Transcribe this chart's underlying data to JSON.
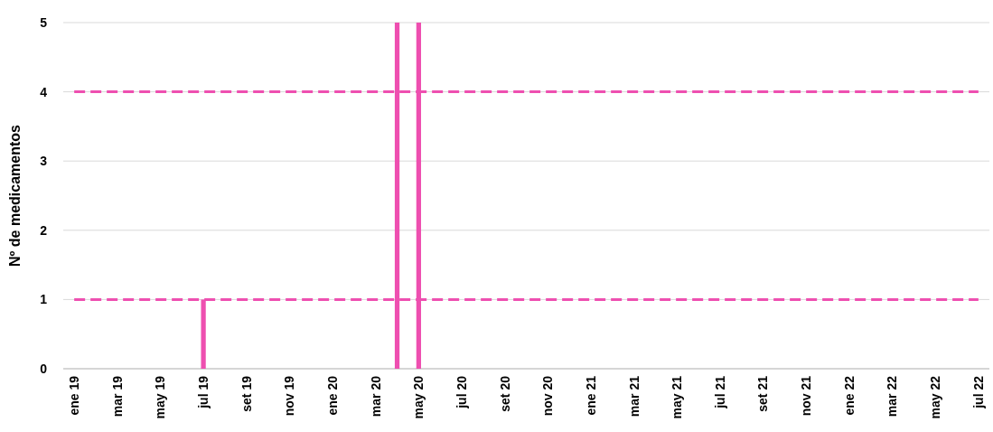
{
  "chart_data": {
    "type": "bar",
    "ylabel": "Nº de medicamentos",
    "categories": [
      "ene 19",
      null,
      "mar 19",
      null,
      "may 19",
      null,
      "jul 19",
      null,
      "set 19",
      null,
      "nov 19",
      null,
      "ene 20",
      null,
      "mar 20",
      null,
      "may 20",
      null,
      "jul 20",
      null,
      "set 20",
      null,
      "nov 20",
      null,
      "ene 21",
      null,
      "mar 21",
      null,
      "may 21",
      null,
      "jul 21",
      null,
      "set 21",
      null,
      "nov 21",
      null,
      "ene 22",
      null,
      "mar 22",
      null,
      "may 22",
      null,
      "jul 22"
    ],
    "series": [
      {
        "color": "#ee4fb0",
        "values": [
          0,
          0,
          0,
          0,
          0,
          0,
          1,
          0,
          0,
          0,
          0,
          0,
          0,
          0,
          0,
          5,
          5,
          0,
          0,
          0,
          0,
          0,
          0,
          0,
          0,
          0,
          0,
          0,
          0,
          0,
          0,
          0,
          0,
          0,
          0,
          0,
          0,
          0,
          0,
          0,
          0,
          0,
          0
        ]
      },
      {
        "type": "line",
        "color": "#ee4fb0",
        "line_style": "dashed",
        "values": [
          1,
          1,
          1,
          1,
          1,
          1,
          1,
          1,
          1,
          1,
          1,
          1,
          1,
          1,
          1,
          1,
          1,
          1,
          1,
          1,
          1,
          1,
          1,
          1,
          1,
          1,
          1,
          1,
          1,
          1,
          1,
          1,
          1,
          1,
          1,
          1,
          1,
          1,
          1,
          1,
          1,
          1,
          1
        ]
      },
      {
        "type": "line",
        "color": "#ee4fb0",
        "line_style": "dashed",
        "values": [
          4,
          4,
          4,
          4,
          4,
          4,
          4,
          4,
          4,
          4,
          4,
          4,
          4,
          4,
          4,
          4,
          4,
          4,
          4,
          4,
          4,
          4,
          4,
          4,
          4,
          4,
          4,
          4,
          4,
          4,
          4,
          4,
          4,
          4,
          4,
          4,
          4,
          4,
          4,
          4,
          4,
          4,
          4
        ]
      }
    ],
    "ylim": [
      0,
      5
    ],
    "yticks": [
      0,
      1,
      2,
      3,
      4,
      5
    ],
    "grid": "y"
  }
}
